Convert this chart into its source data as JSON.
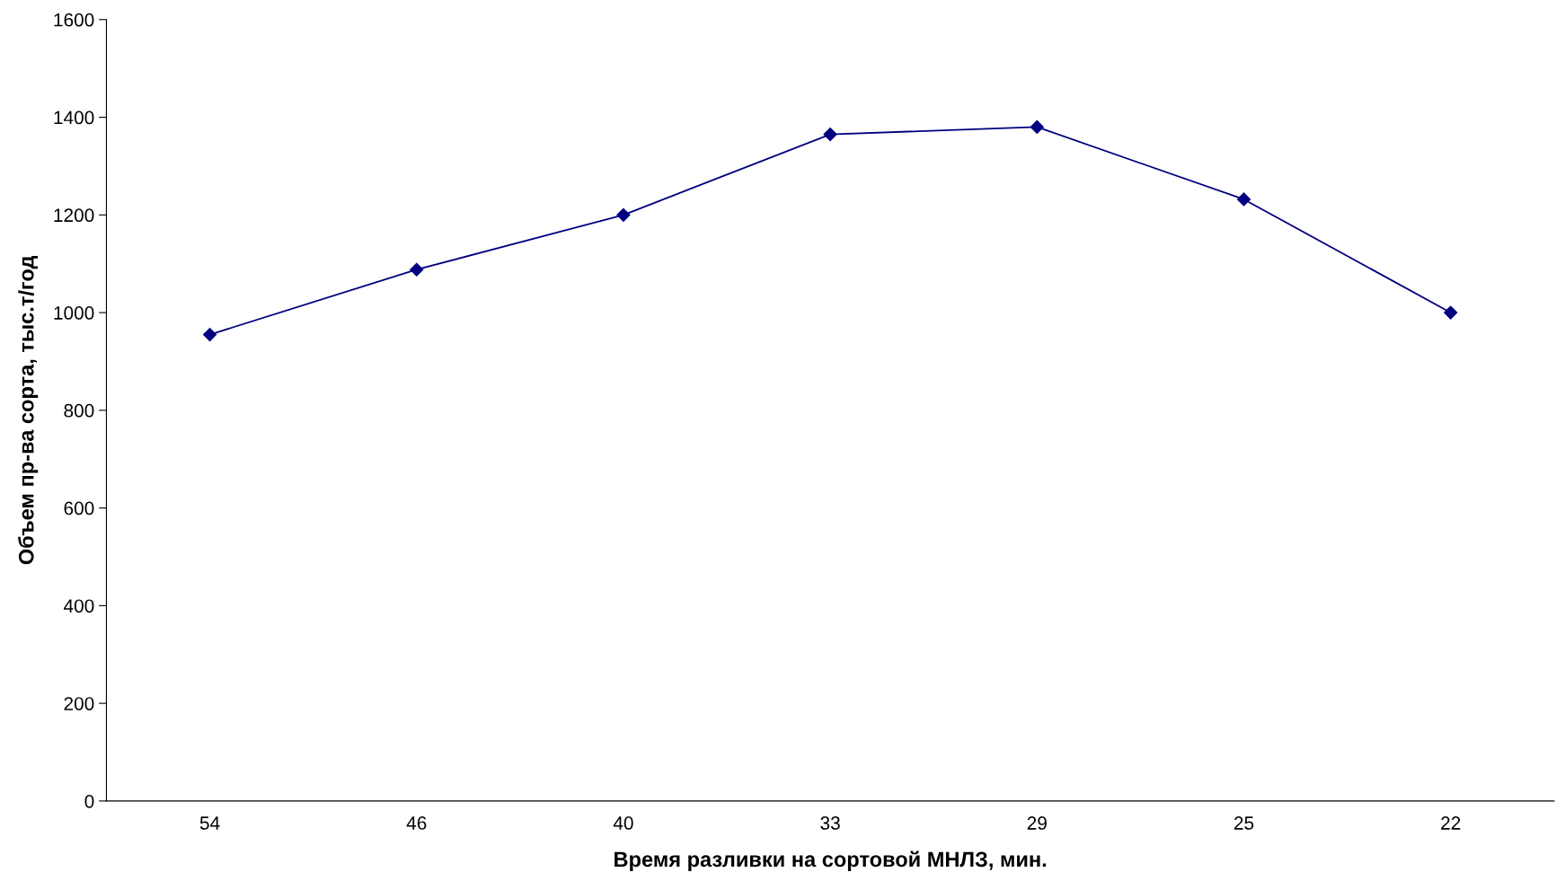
{
  "chart_data": {
    "type": "line",
    "xlabel": "Время разливки на сортовой МНЛЗ, мин.",
    "ylabel": "Объем пр-ва сорта, тыс.т/год",
    "categories": [
      "54",
      "46",
      "40",
      "33",
      "29",
      "25",
      "22"
    ],
    "series": [
      {
        "color": "#000080",
        "values": [
          955,
          1088,
          1200,
          1365,
          1380,
          1232,
          1000
        ]
      }
    ],
    "ylim": [
      0,
      1600
    ],
    "yticks": [
      0,
      200,
      400,
      600,
      800,
      1000,
      1200,
      1400,
      1600
    ],
    "marker": "diamond",
    "line_style": "solid",
    "grid": false,
    "legend": false
  }
}
